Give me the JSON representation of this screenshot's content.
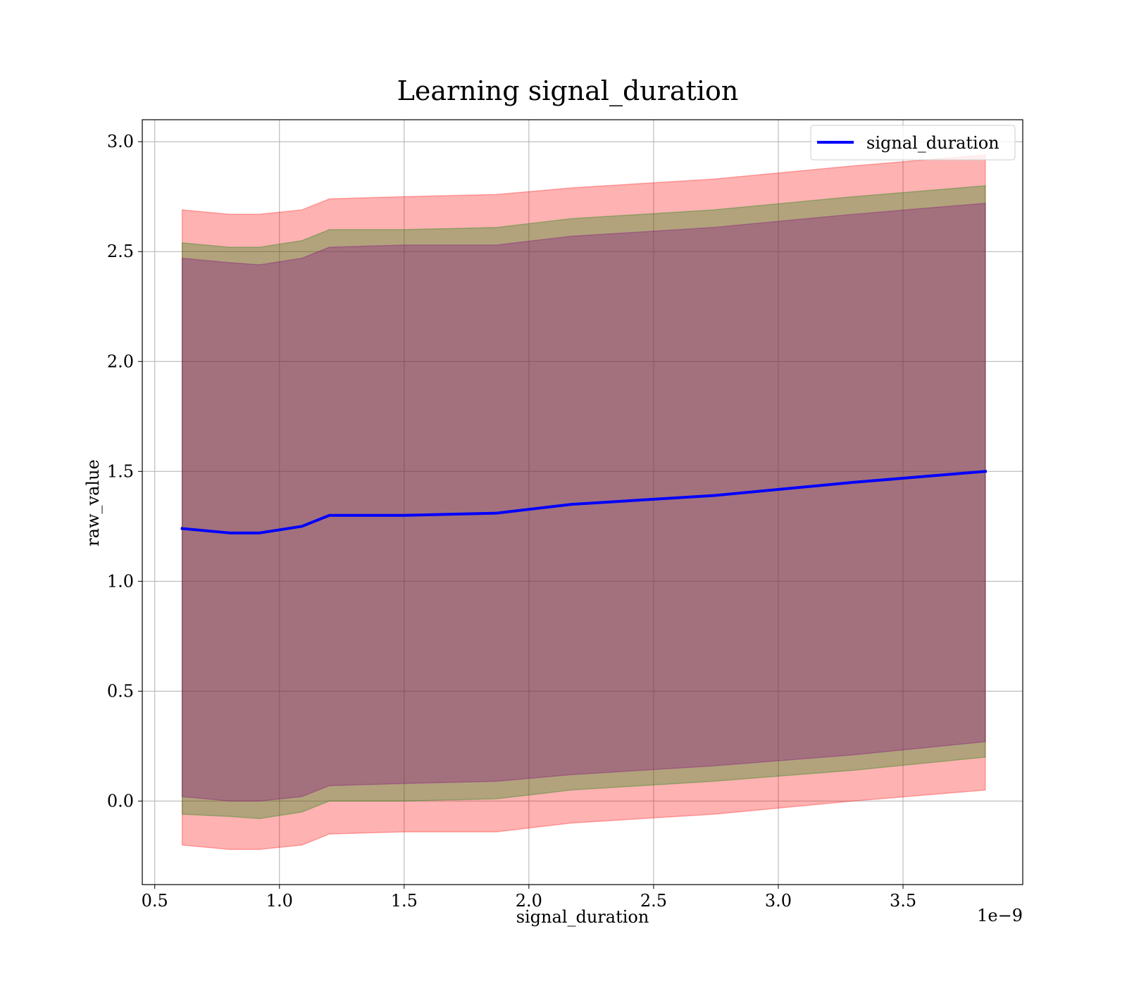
{
  "chart_data": {
    "type": "line",
    "title": "Learning signal_duration",
    "xlabel": "signal_duration",
    "ylabel": "raw_value",
    "x_offset_text": "1e−9",
    "xlim": [
      0.45,
      3.98
    ],
    "ylim": [
      -0.38,
      3.1
    ],
    "xticks": [
      0.5,
      1.0,
      1.5,
      2.0,
      2.5,
      3.0,
      3.5
    ],
    "xtick_labels": [
      "0.5",
      "1.0",
      "1.5",
      "2.0",
      "2.5",
      "3.0",
      "3.5"
    ],
    "yticks": [
      0.0,
      0.5,
      1.0,
      1.5,
      2.0,
      2.5,
      3.0
    ],
    "ytick_labels": [
      "0.0",
      "0.5",
      "1.0",
      "1.5",
      "2.0",
      "2.5",
      "3.0"
    ],
    "grid": true,
    "legend_position": "top-right",
    "x": [
      0.61,
      0.8,
      0.92,
      1.09,
      1.2,
      1.5,
      1.87,
      2.17,
      2.74,
      3.3,
      3.83
    ],
    "series": [
      {
        "name": "signal_duration",
        "color": "#0000ff",
        "values": [
          1.24,
          1.22,
          1.22,
          1.25,
          1.3,
          1.3,
          1.31,
          1.35,
          1.39,
          1.45,
          1.5
        ]
      }
    ],
    "bands": [
      {
        "color": "#ff0000",
        "opacity": 0.3,
        "lower": [
          -0.2,
          -0.22,
          -0.22,
          -0.2,
          -0.15,
          -0.14,
          -0.14,
          -0.1,
          -0.06,
          0.0,
          0.05
        ],
        "upper": [
          2.69,
          2.67,
          2.67,
          2.69,
          2.74,
          2.75,
          2.76,
          2.79,
          2.83,
          2.89,
          2.94
        ]
      },
      {
        "color": "#008000",
        "opacity": 0.3,
        "lower": [
          -0.06,
          -0.07,
          -0.08,
          -0.05,
          0.0,
          0.0,
          0.01,
          0.05,
          0.09,
          0.14,
          0.2
        ],
        "upper": [
          2.54,
          2.52,
          2.52,
          2.55,
          2.6,
          2.6,
          2.61,
          2.65,
          2.69,
          2.75,
          2.8
        ]
      },
      {
        "color": "#800080",
        "opacity": 0.3,
        "lower": [
          0.02,
          0.0,
          0.0,
          0.02,
          0.07,
          0.08,
          0.09,
          0.12,
          0.16,
          0.21,
          0.27
        ],
        "upper": [
          2.47,
          2.45,
          2.44,
          2.47,
          2.52,
          2.53,
          2.53,
          2.57,
          2.61,
          2.67,
          2.72
        ]
      }
    ]
  }
}
